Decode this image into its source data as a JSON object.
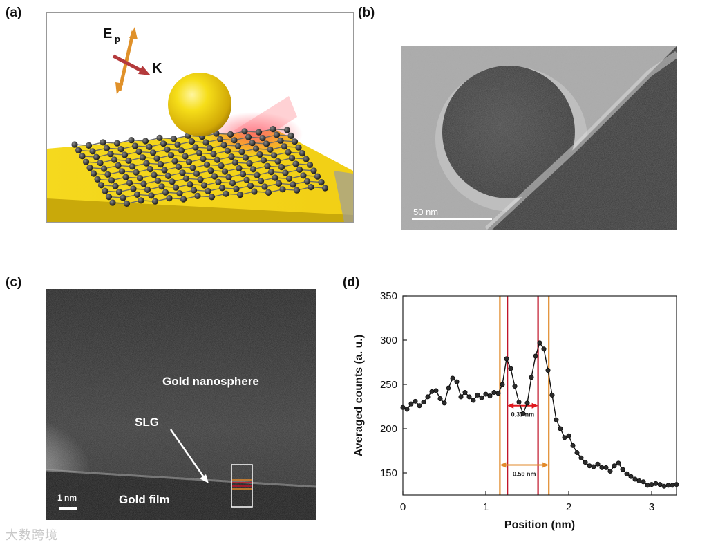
{
  "panels": {
    "a": {
      "label": "(a)",
      "ep_main": "E",
      "ep_sub": "p",
      "k_label": "K"
    },
    "b": {
      "label": "(b)",
      "scalebar": "50 nm"
    },
    "c": {
      "label": "(c)",
      "nanosphere": "Gold nanosphere",
      "slg": "SLG",
      "film": "Gold film",
      "scalebar": "1 nm"
    },
    "d": {
      "label": "(d)"
    }
  },
  "chart_data": {
    "type": "line",
    "xlabel": "Position (nm)",
    "ylabel": "Averaged counts (a. u.)",
    "xlim": [
      0,
      3.3
    ],
    "ylim": [
      125,
      350
    ],
    "xticks": [
      0,
      1,
      2,
      3
    ],
    "yticks": [
      150,
      200,
      250,
      300,
      350
    ],
    "grid": false,
    "series": [
      {
        "color": "#111111",
        "marker": "circle",
        "points": [
          [
            0.0,
            224
          ],
          [
            0.05,
            222
          ],
          [
            0.1,
            228
          ],
          [
            0.15,
            231
          ],
          [
            0.2,
            226
          ],
          [
            0.25,
            230
          ],
          [
            0.3,
            236
          ],
          [
            0.35,
            242
          ],
          [
            0.4,
            243
          ],
          [
            0.45,
            234
          ],
          [
            0.5,
            229
          ],
          [
            0.55,
            246
          ],
          [
            0.6,
            257
          ],
          [
            0.65,
            253
          ],
          [
            0.7,
            236
          ],
          [
            0.75,
            241
          ],
          [
            0.8,
            236
          ],
          [
            0.85,
            232
          ],
          [
            0.9,
            238
          ],
          [
            0.95,
            235
          ],
          [
            1.0,
            239
          ],
          [
            1.05,
            237
          ],
          [
            1.1,
            241
          ],
          [
            1.15,
            240
          ],
          [
            1.2,
            250
          ],
          [
            1.25,
            279
          ],
          [
            1.3,
            268
          ],
          [
            1.35,
            248
          ],
          [
            1.4,
            230
          ],
          [
            1.45,
            217
          ],
          [
            1.5,
            229
          ],
          [
            1.55,
            258
          ],
          [
            1.6,
            282
          ],
          [
            1.65,
            297
          ],
          [
            1.7,
            290
          ],
          [
            1.75,
            266
          ],
          [
            1.8,
            238
          ],
          [
            1.85,
            210
          ],
          [
            1.9,
            200
          ],
          [
            1.95,
            190
          ],
          [
            2.0,
            192
          ],
          [
            2.05,
            181
          ],
          [
            2.1,
            173
          ],
          [
            2.15,
            167
          ],
          [
            2.2,
            162
          ],
          [
            2.25,
            158
          ],
          [
            2.3,
            157
          ],
          [
            2.35,
            160
          ],
          [
            2.4,
            156
          ],
          [
            2.45,
            156
          ],
          [
            2.5,
            152
          ],
          [
            2.55,
            158
          ],
          [
            2.6,
            161
          ],
          [
            2.65,
            154
          ],
          [
            2.7,
            149
          ],
          [
            2.75,
            146
          ],
          [
            2.8,
            143
          ],
          [
            2.85,
            141
          ],
          [
            2.9,
            140
          ],
          [
            2.95,
            136
          ],
          [
            3.0,
            137
          ],
          [
            3.05,
            138
          ],
          [
            3.1,
            137
          ],
          [
            3.15,
            135
          ],
          [
            3.2,
            136
          ],
          [
            3.25,
            136
          ],
          [
            3.3,
            137
          ]
        ]
      }
    ],
    "vlines": [
      {
        "x": 1.17,
        "color": "#e28a2b"
      },
      {
        "x": 1.26,
        "color": "#c0152a"
      },
      {
        "x": 1.63,
        "color": "#c0152a"
      },
      {
        "x": 1.76,
        "color": "#e28a2b"
      }
    ],
    "annotations": [
      {
        "text": "0.37 nm",
        "from": 1.26,
        "to": 1.63,
        "y": 226,
        "color": "#e0181e"
      },
      {
        "text": "0.59 nm",
        "from": 1.17,
        "to": 1.76,
        "y": 159,
        "color": "#e28a2b"
      }
    ]
  },
  "watermark": "大数跨境"
}
